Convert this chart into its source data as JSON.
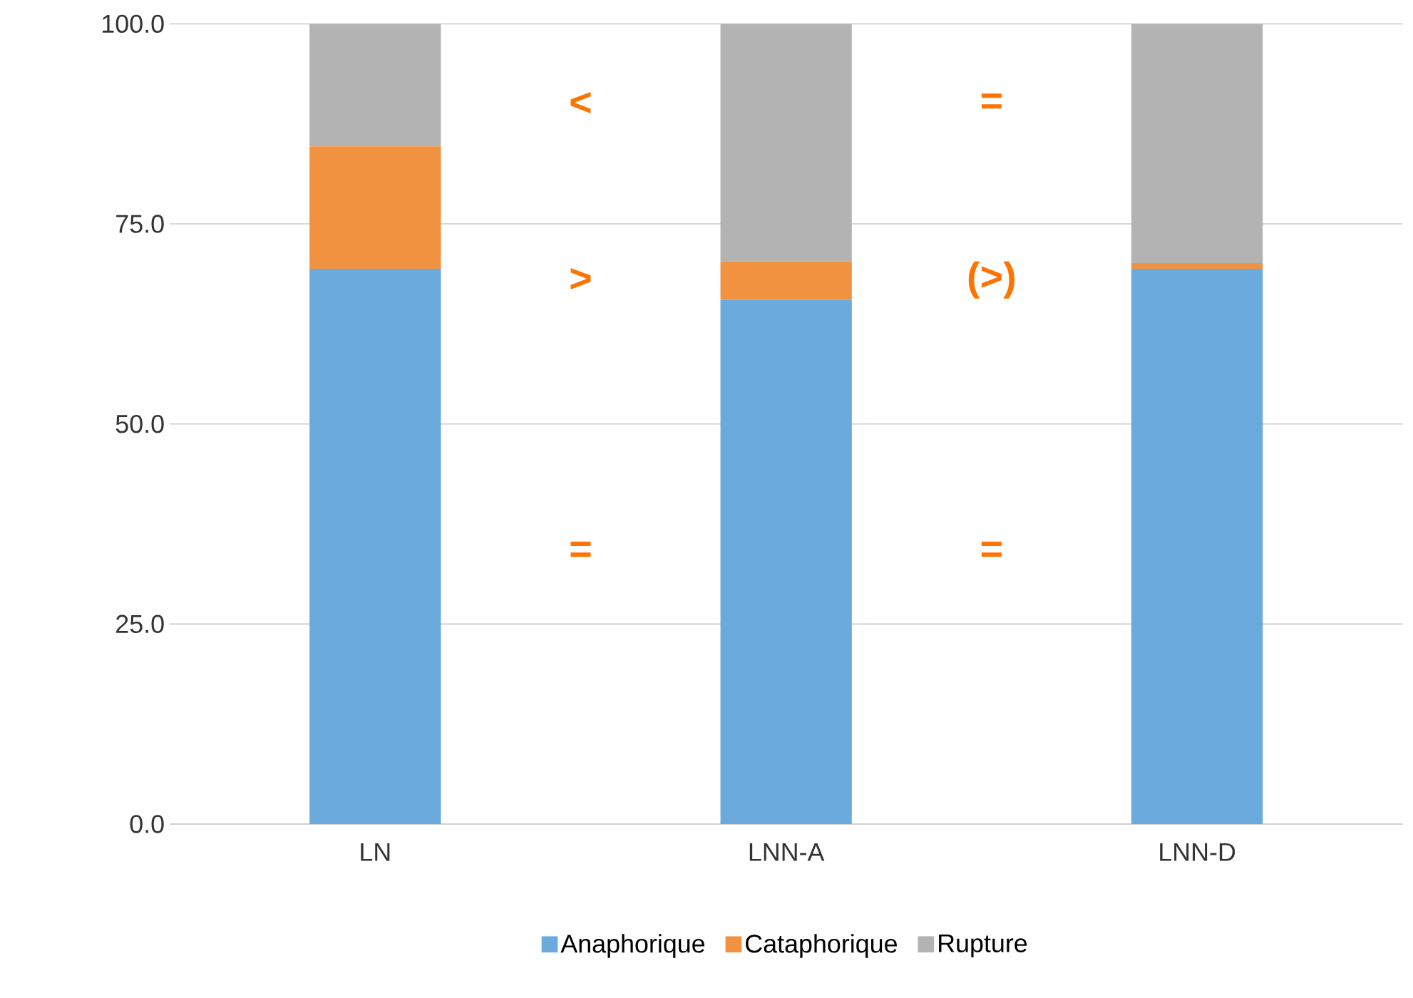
{
  "chart_data": {
    "type": "bar",
    "stacked": true,
    "categories": [
      "LN",
      "LNN-A",
      "LNN-D"
    ],
    "series": [
      {
        "name": "Anaphorique",
        "color": "#6aaadc",
        "values": [
          69.4,
          65.5,
          69.4
        ]
      },
      {
        "name": "Cataphorique",
        "color": "#f19240",
        "values": [
          15.3,
          4.8,
          0.7
        ]
      },
      {
        "name": "Rupture",
        "color": "#b3b3b3",
        "values": [
          15.3,
          29.7,
          29.9
        ]
      }
    ],
    "ylim": [
      0,
      100
    ],
    "yticks": [
      {
        "value": 0,
        "label": "0.0"
      },
      {
        "value": 25,
        "label": "25.0"
      },
      {
        "value": 50,
        "label": "50.0"
      },
      {
        "value": 75,
        "label": "75.0"
      },
      {
        "value": 100,
        "label": "100.0"
      }
    ],
    "grid": "y",
    "legend": "bottom",
    "annotations": [
      "<",
      ">",
      "=",
      "=",
      "(>)",
      "="
    ]
  }
}
